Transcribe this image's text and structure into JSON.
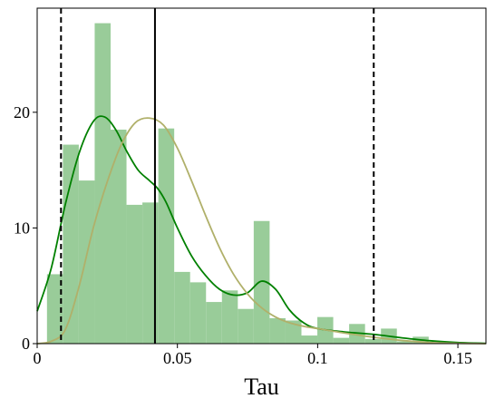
{
  "chart_data": {
    "type": "bar",
    "xlabel": "Tau",
    "ylabel": "",
    "xlim": [
      0,
      0.16
    ],
    "ylim": [
      0,
      29
    ],
    "xticks": [
      0,
      0.05,
      0.1,
      0.15
    ],
    "xtick_labels": [
      "0",
      "0.05",
      "0.1",
      "0.15"
    ],
    "yticks": [
      0,
      10,
      20
    ],
    "ytick_labels": [
      "0",
      "10",
      "20"
    ],
    "grid": false,
    "legend": "none",
    "histogram": {
      "color": "#99cc99",
      "bin_width": 0.00567,
      "bin_edges_start": 0.0035,
      "values": [
        6.0,
        17.2,
        14.1,
        27.7,
        18.5,
        12.0,
        12.2,
        18.6,
        6.2,
        5.3,
        3.6,
        4.6,
        3.0,
        10.6,
        2.2,
        2.0,
        0.7,
        2.3,
        0.5,
        1.7,
        0.4,
        1.3,
        0.2,
        0.6
      ]
    },
    "series": [
      {
        "type": "line",
        "color": "#008000",
        "x": [
          0.0,
          0.005,
          0.01,
          0.015,
          0.02,
          0.024,
          0.028,
          0.032,
          0.036,
          0.04,
          0.043,
          0.046,
          0.05,
          0.055,
          0.06,
          0.065,
          0.07,
          0.075,
          0.08,
          0.085,
          0.09,
          0.095,
          0.1,
          0.11,
          0.12,
          0.13,
          0.14,
          0.15,
          0.16
        ],
        "y": [
          2.8,
          6.5,
          12.0,
          16.5,
          19.2,
          19.6,
          18.5,
          16.6,
          15.0,
          14.1,
          13.4,
          12.2,
          10.0,
          7.6,
          5.9,
          4.7,
          4.2,
          4.4,
          5.4,
          4.7,
          2.9,
          1.8,
          1.3,
          1.0,
          0.8,
          0.5,
          0.25,
          0.1,
          0.02
        ]
      },
      {
        "type": "line",
        "color": "#b0b06a",
        "x": [
          0.0,
          0.005,
          0.01,
          0.015,
          0.02,
          0.025,
          0.03,
          0.035,
          0.04,
          0.045,
          0.05,
          0.055,
          0.06,
          0.065,
          0.07,
          0.075,
          0.08,
          0.085,
          0.09,
          0.095,
          0.1,
          0.11,
          0.12,
          0.13,
          0.14,
          0.15,
          0.16
        ],
        "y": [
          0.0,
          0.2,
          1.2,
          5.0,
          10.0,
          14.0,
          17.2,
          19.1,
          19.5,
          18.9,
          16.9,
          14.1,
          11.1,
          8.3,
          6.0,
          4.3,
          3.1,
          2.3,
          1.8,
          1.5,
          1.3,
          0.9,
          0.55,
          0.28,
          0.1,
          0.03,
          0.0
        ]
      }
    ],
    "vlines": [
      {
        "x": 0.0085,
        "style": "dashed",
        "color": "#000000"
      },
      {
        "x": 0.042,
        "style": "solid",
        "color": "#000000"
      },
      {
        "x": 0.12,
        "style": "dashed",
        "color": "#000000"
      }
    ]
  }
}
